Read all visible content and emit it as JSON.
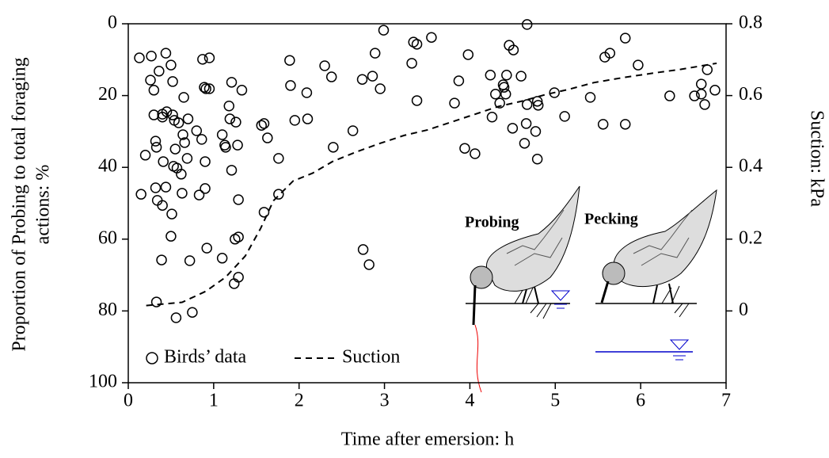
{
  "chart_data": {
    "type": "scatter",
    "xlabel": "Time after emersion: h",
    "ylabel": [
      "Proportion of Probing to total foraging",
      "actions: %"
    ],
    "y2label": "Suction: kPa",
    "annotations": [
      "Probing",
      "Pecking"
    ],
    "xlim": [
      0,
      7
    ],
    "xticks": [
      0,
      1,
      2,
      3,
      4,
      5,
      6,
      7
    ],
    "ylim": [
      0,
      100
    ],
    "y_inverted": true,
    "yticks": [
      0,
      20,
      40,
      60,
      80,
      100
    ],
    "y2lim": [
      -0.2,
      0.8
    ],
    "y2ticks": [
      0,
      0.2,
      0.4,
      0.6,
      0.8
    ],
    "series": [
      {
        "name": "Birds’ data",
        "type": "scatter",
        "color": "#000000",
        "x": [
          0.13,
          0.15,
          0.2,
          0.27,
          0.26,
          0.3,
          0.3,
          0.32,
          0.33,
          0.32,
          0.34,
          0.33,
          0.36,
          0.4,
          0.4,
          0.41,
          0.4,
          0.39,
          0.44,
          0.44,
          0.45,
          0.5,
          0.5,
          0.51,
          0.52,
          0.52,
          0.53,
          0.54,
          0.55,
          0.56,
          0.57,
          0.59,
          0.62,
          0.63,
          0.64,
          0.66,
          0.65,
          0.69,
          0.7,
          0.72,
          0.75,
          0.8,
          0.83,
          0.86,
          0.87,
          0.89,
          0.9,
          0.9,
          0.91,
          0.92,
          0.95,
          0.95,
          1.1,
          1.1,
          1.13,
          1.14,
          1.18,
          1.19,
          1.21,
          1.21,
          1.24,
          1.26,
          1.25,
          1.29,
          1.28,
          1.29,
          1.29,
          1.33,
          1.56,
          1.59,
          1.59,
          1.63,
          1.76,
          1.76,
          1.89,
          1.9,
          1.95,
          2.09,
          2.1,
          2.3,
          2.38,
          2.4,
          2.63,
          2.74,
          2.75,
          2.82,
          2.86,
          2.89,
          2.95,
          2.99,
          3.32,
          3.34,
          3.38,
          3.38,
          3.55,
          3.87,
          3.82,
          3.94,
          3.98,
          4.06,
          4.24,
          4.26,
          4.3,
          4.35,
          4.39,
          4.4,
          4.42,
          4.43,
          4.46,
          4.5,
          4.51,
          4.6,
          4.67,
          4.66,
          4.64,
          4.67,
          4.77,
          4.79,
          4.79,
          4.8,
          4.99,
          5.11,
          5.41,
          5.56,
          5.58,
          5.64,
          5.82,
          5.82,
          5.97,
          6.34,
          6.63,
          6.71,
          6.71,
          6.75,
          6.78,
          6.87
        ],
        "values": [
          9.5,
          47.5,
          36.6,
          9,
          15.7,
          18.5,
          25.4,
          32.7,
          34.4,
          45.7,
          49.2,
          77.5,
          13.2,
          25.2,
          26,
          38.4,
          50.6,
          65.8,
          8.2,
          45.5,
          24.5,
          11.5,
          59.2,
          53,
          16.1,
          25.4,
          39.7,
          26.9,
          34.9,
          81.9,
          40.2,
          27.6,
          41.9,
          47.2,
          30.9,
          33.1,
          20.5,
          37.5,
          26.5,
          66,
          80.4,
          29.8,
          47.7,
          32.2,
          9.9,
          17.7,
          38.4,
          45.9,
          18.1,
          62.5,
          18.1,
          9.5,
          65.3,
          30.9,
          33.8,
          34.4,
          22.9,
          26.5,
          16.3,
          40.8,
          72.4,
          27.4,
          60,
          59.4,
          33.8,
          70.6,
          49,
          18.5,
          28.3,
          27.8,
          52.5,
          31.8,
          37.5,
          47.5,
          10.2,
          17.2,
          26.9,
          19.2,
          26.5,
          11.7,
          14.8,
          34.4,
          29.8,
          15.5,
          62.9,
          67.1,
          14.6,
          8.2,
          18.1,
          1.8,
          11,
          5.1,
          5.7,
          21.4,
          3.8,
          15.9,
          22.1,
          34.7,
          8.6,
          36.2,
          14.3,
          26,
          19.6,
          22.1,
          17,
          17.7,
          19.6,
          14.3,
          6,
          29.1,
          7.3,
          14.6,
          0.2,
          27.8,
          33.3,
          22.5,
          30,
          37.7,
          21.6,
          22.7,
          19.2,
          25.8,
          20.5,
          28,
          9.3,
          8.2,
          4,
          28,
          11.5,
          20.1,
          20.1,
          16.8,
          19.6,
          22.5,
          12.8,
          18.5
        ]
      },
      {
        "name": "Suction",
        "type": "line",
        "axis": "y2",
        "color": "#000000",
        "x": [
          0.21,
          0.63,
          0.91,
          1.14,
          1.37,
          1.55,
          1.7,
          1.93,
          2.16,
          2.39,
          2.67,
          2.95,
          3.23,
          3.5,
          3.78,
          4.06,
          4.34,
          4.62,
          4.89,
          5.17,
          5.45,
          5.82,
          6.19,
          6.47,
          6.89
        ],
        "values": [
          0.015,
          0.024,
          0.055,
          0.094,
          0.153,
          0.23,
          0.307,
          0.362,
          0.384,
          0.416,
          0.443,
          0.467,
          0.489,
          0.504,
          0.526,
          0.548,
          0.57,
          0.585,
          0.603,
          0.618,
          0.636,
          0.651,
          0.664,
          0.673,
          0.69
        ]
      }
    ]
  }
}
